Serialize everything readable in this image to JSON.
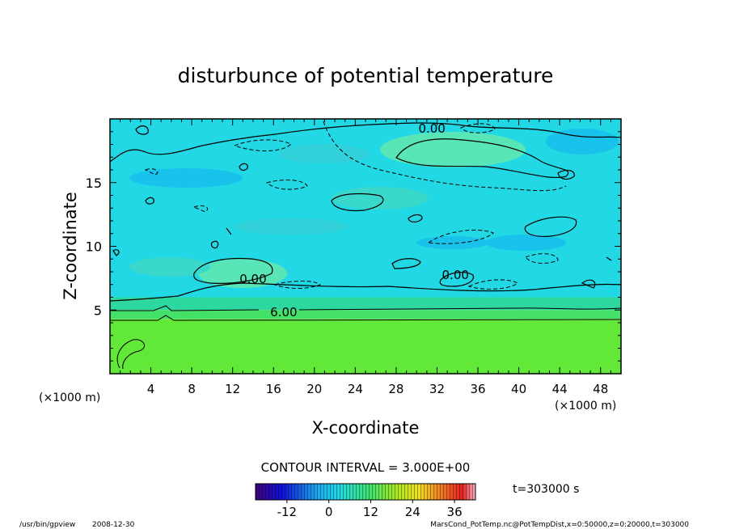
{
  "chart_data": {
    "type": "heatmap",
    "title": "disturbunce of potential temperature",
    "xlabel": "X-coordinate",
    "ylabel": "Z-coordinate",
    "x_unit_left": "(×1000 m)",
    "x_unit_right": "(×1000 m)",
    "xlim": [
      0,
      50
    ],
    "ylim": [
      0,
      20
    ],
    "x_ticks": [
      4,
      8,
      12,
      16,
      20,
      24,
      28,
      32,
      36,
      40,
      44,
      48
    ],
    "y_ticks": [
      5,
      10,
      15
    ],
    "contour_interval": "CONTOUR INTERVAL = 3.000E+00",
    "time_label": "t=303000 s",
    "contour_labels": [
      {
        "text": "0.00",
        "x": 31.5,
        "z": 19.3
      },
      {
        "text": "0.00",
        "x": 14.0,
        "z": 7.5
      },
      {
        "text": "0.00",
        "x": 33.8,
        "z": 7.8
      },
      {
        "text": "6.00",
        "x": 17.0,
        "z": 4.9
      }
    ],
    "colorbar": {
      "min": -21,
      "max": 42,
      "ticks": [
        -12,
        0,
        12,
        24,
        36
      ],
      "tick_labels": [
        "-12",
        "0",
        "12",
        "24",
        "36"
      ]
    },
    "layers": [
      {
        "z_from": 0,
        "z_to": 4.3,
        "value": 21,
        "color": "#62e838"
      },
      {
        "z_from": 4.3,
        "z_to": 5.0,
        "value": 15,
        "color": "#44e068"
      },
      {
        "text": "",
        "z_from": 5.0,
        "z_to": 6.0,
        "value": 9,
        "color": "#2dd8a0"
      },
      {
        "z_from": 6.0,
        "z_to": 20,
        "value": 0,
        "color": "#22d8e4"
      }
    ]
  },
  "footer": {
    "program": "/usr/bin/gpview",
    "date": "2008-12-30",
    "source": "MarsCond_PotTemp.nc@PotTempDist,x=0:50000,z=0:20000,t=303000"
  }
}
